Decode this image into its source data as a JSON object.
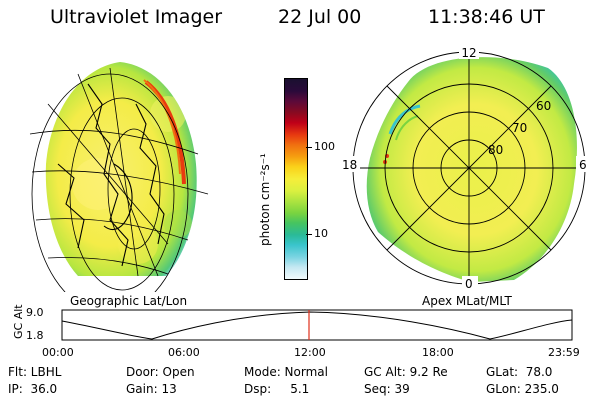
{
  "header": {
    "instrument": "Ultraviolet Imager",
    "date": "22 Jul 00",
    "time": "11:38:46 UT"
  },
  "geo_panel": {
    "caption": "Geographic Lat/Lon"
  },
  "polar_panel": {
    "caption": "Apex MLat/MLT",
    "mlt_labels": [
      "12",
      "18",
      "6",
      "0"
    ],
    "lat_labels": [
      "60",
      "70",
      "80"
    ]
  },
  "colorbar": {
    "label": "photon cm⁻²s⁻¹",
    "ticks": [
      "100",
      "10"
    ],
    "colors": [
      "#1a1030",
      "#2a0a3a",
      "#5a0a3a",
      "#8a0a20",
      "#c00018",
      "#e83a10",
      "#f07010",
      "#f6a010",
      "#fad21a",
      "#f6ee3a",
      "#daf040",
      "#aee440",
      "#7ad440",
      "#46c460",
      "#2aba98",
      "#3ac4cc",
      "#7ad4e2",
      "#c4e8f2",
      "#f2fafc"
    ]
  },
  "altitude_strip": {
    "ylabel": "GC Alt",
    "yticks": [
      "9.0",
      "1.8"
    ],
    "xticks": [
      "00:00",
      "06:00",
      "12:00",
      "18:00",
      "23:59"
    ]
  },
  "footer": {
    "rows": [
      [
        "Flt: LBHL",
        "Door: Open",
        "Mode: Normal",
        "GC Alt: 9.2 Re",
        "GLat:  78.0"
      ],
      [
        "IP:  36.0",
        "Gain: 13",
        "Dsp:     5.1",
        "Seq: 39",
        "GLon: 235.0"
      ]
    ]
  }
}
